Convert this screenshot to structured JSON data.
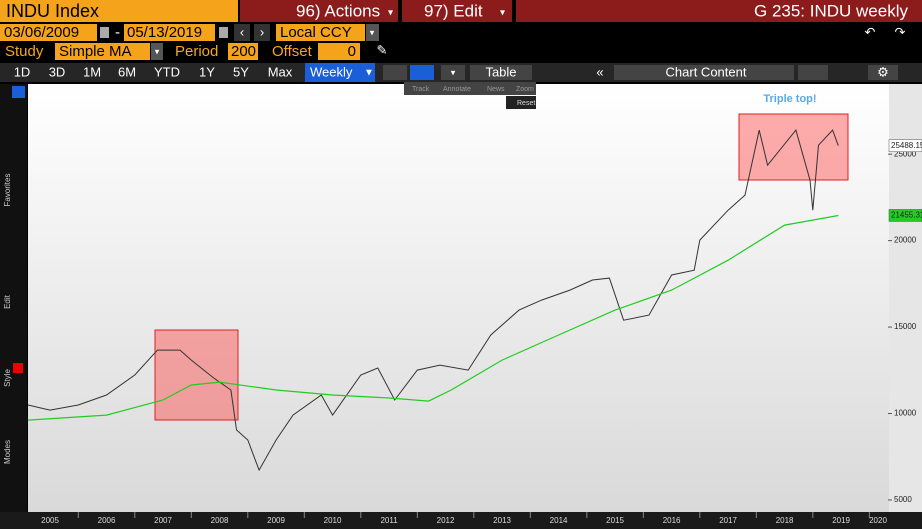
{
  "header": {
    "security": "INDU Index",
    "actions": "96) Actions",
    "edit": "97) Edit",
    "window_title": "G 235: INDU weekly"
  },
  "dates": {
    "start": "03/06/2009",
    "separator": "-",
    "end": "05/13/2019",
    "currency": "Local CCY"
  },
  "study": {
    "label": "Study",
    "value": "Simple MA",
    "period_label": "Period",
    "period": "200",
    "offset_label": "Offset",
    "offset": "0"
  },
  "toolbar": {
    "periods": [
      "1D",
      "3D",
      "1M",
      "6M",
      "YTD",
      "1Y",
      "5Y",
      "Max"
    ],
    "frequency": "Weekly",
    "table": "Table",
    "chart_content": "Chart Content"
  },
  "mini_toolbar": [
    "Track",
    "Annotate",
    "News",
    "Zoom",
    "Reset"
  ],
  "sidebar": [
    "Favorites",
    "Edit",
    "Style",
    "Modes"
  ],
  "chart_data": {
    "type": "line",
    "annotation": "Triple top!",
    "xlim": [
      2005.11,
      2020.33
    ],
    "xticks": [
      2005,
      2006,
      2007,
      2008,
      2009,
      2010,
      2011,
      2012,
      2013,
      2014,
      2015,
      2016,
      2017,
      2018,
      2019,
      2020
    ],
    "ylim": [
      4420,
      29000
    ],
    "yticks": [
      5000,
      10000,
      15000,
      20000,
      25000
    ],
    "series": [
      {
        "color": "#333333",
        "tag_color": "#ffffff",
        "x": [
          2005.11,
          2005.5,
          2006.0,
          2006.5,
          2007.0,
          2007.4,
          2007.8,
          2008.0,
          2008.4,
          2008.7,
          2008.8,
          2009.0,
          2009.2,
          2009.5,
          2009.8,
          2010.3,
          2010.5,
          2011.0,
          2011.3,
          2011.6,
          2012.0,
          2012.4,
          2012.9,
          2013.3,
          2013.8,
          2014.2,
          2014.7,
          2015.1,
          2015.4,
          2015.65,
          2016.1,
          2016.5,
          2016.9,
          2017.0,
          2017.5,
          2017.8,
          2018.05,
          2018.2,
          2018.7,
          2018.95,
          2019.0,
          2019.1,
          2019.35,
          2019.45
        ],
        "values": [
          10490,
          10200,
          10490,
          11070,
          12230,
          13670,
          13670,
          13090,
          12050,
          11360,
          9050,
          8470,
          6730,
          8470,
          9910,
          11070,
          9910,
          12230,
          12630,
          10780,
          12510,
          12800,
          12510,
          14540,
          15980,
          16560,
          17140,
          17720,
          17830,
          15400,
          15690,
          18010,
          18290,
          20030,
          21760,
          22630,
          26390,
          24360,
          26390,
          23500,
          21760,
          25520,
          26390,
          25488.15
        ]
      },
      {
        "color": "#22cc22",
        "tag_color": "#22cc22",
        "x": [
          2005.11,
          2006.5,
          2007.5,
          2008.0,
          2008.5,
          2009.5,
          2010.5,
          2011.5,
          2012.2,
          2012.6,
          2013.5,
          2014.5,
          2015.5,
          2016.5,
          2017.5,
          2018.5,
          2019.45
        ],
        "values": [
          9620,
          9910,
          10780,
          11650,
          11820,
          11360,
          11070,
          10900,
          10720,
          11360,
          13090,
          14540,
          15980,
          17140,
          18870,
          20900,
          21455.31
        ]
      }
    ]
  }
}
